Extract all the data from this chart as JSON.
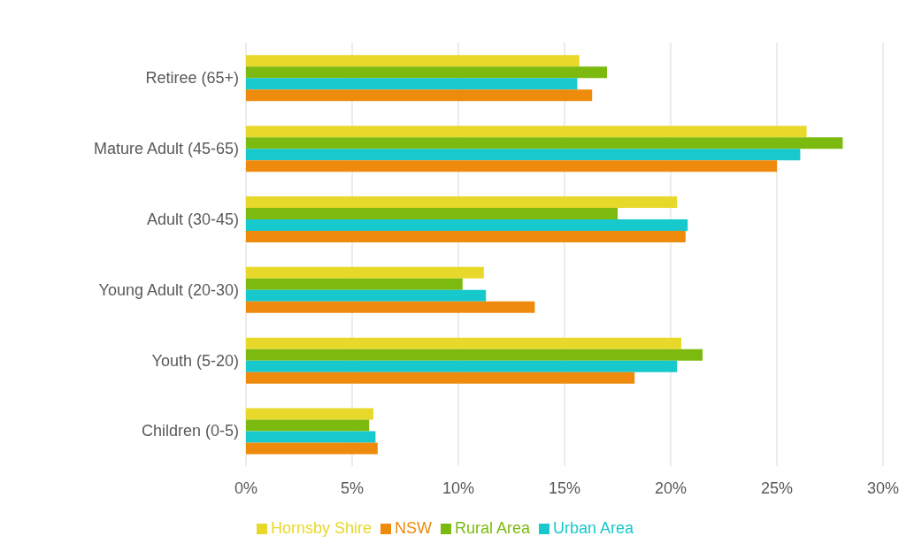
{
  "chart_data": {
    "type": "bar",
    "orientation": "horizontal",
    "categories": [
      "Retiree (65+)",
      "Mature Adult (45-65)",
      "Adult (30-45)",
      "Young Adult (20-30)",
      "Youth (5-20)",
      "Children (0-5)"
    ],
    "series": [
      {
        "name": "Hornsby Shire",
        "color": "#e8d82a",
        "values": [
          15.7,
          26.4,
          20.3,
          11.2,
          20.5,
          6.0
        ]
      },
      {
        "name": "Rural Area",
        "color": "#7cba10",
        "values": [
          17.0,
          28.1,
          17.5,
          10.2,
          21.5,
          5.8
        ]
      },
      {
        "name": "Urban Area",
        "color": "#17c8cc",
        "values": [
          15.6,
          26.1,
          20.8,
          11.3,
          20.3,
          6.1
        ]
      },
      {
        "name": "NSW",
        "color": "#ee8a0c",
        "values": [
          16.3,
          25.0,
          20.7,
          13.6,
          18.3,
          6.2
        ]
      }
    ],
    "xlim": [
      0,
      30
    ],
    "xticks": [
      {
        "value": 0,
        "label": "0%"
      },
      {
        "value": 5,
        "label": "5%"
      },
      {
        "value": 10,
        "label": "10%"
      },
      {
        "value": 15,
        "label": "15%"
      },
      {
        "value": 20,
        "label": "20%"
      },
      {
        "value": 25,
        "label": "25%"
      },
      {
        "value": 30,
        "label": "30%"
      }
    ],
    "grid": "x",
    "legend": "bottom"
  }
}
